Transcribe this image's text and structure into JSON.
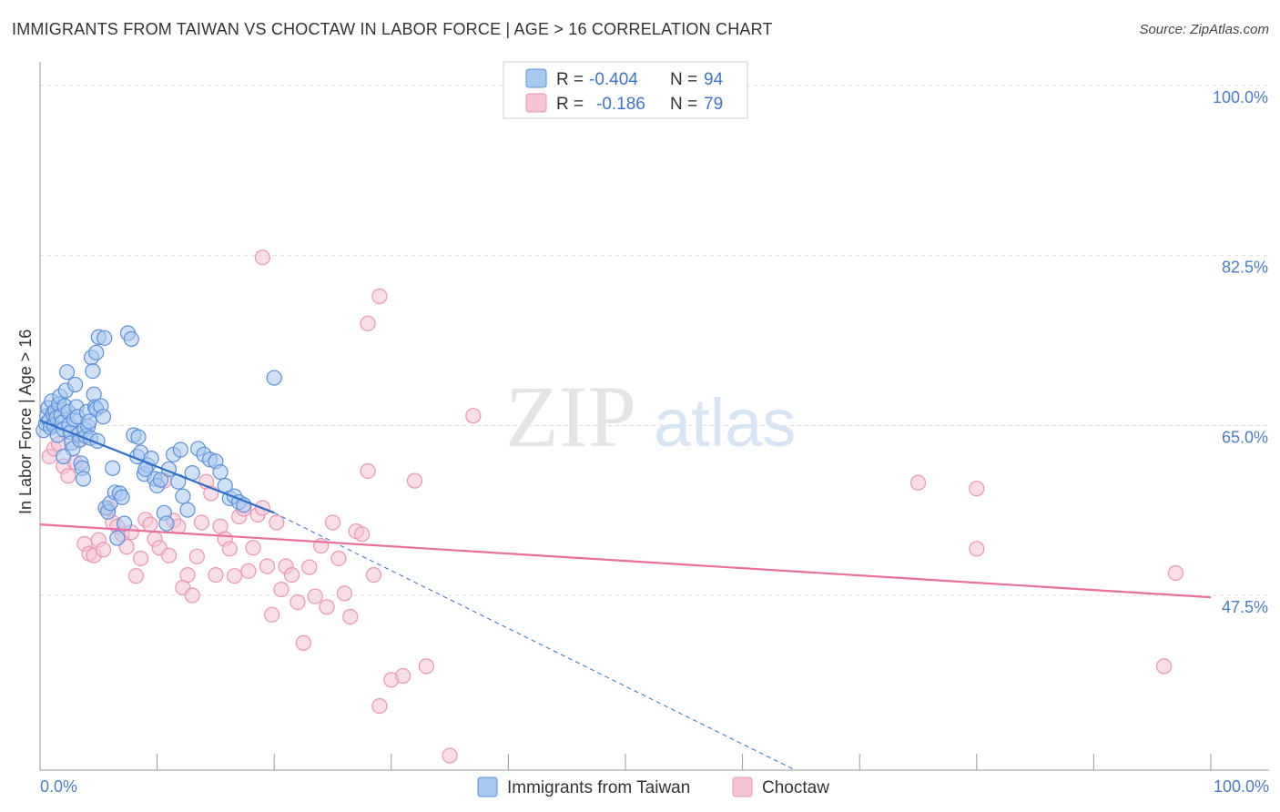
{
  "title": "IMMIGRANTS FROM TAIWAN VS CHOCTAW IN LABOR FORCE | AGE > 16 CORRELATION CHART",
  "source": "Source: ZipAtlas.com",
  "watermark": {
    "zip": "ZIP",
    "atlas": "atlas"
  },
  "colors": {
    "blue_fill": "#a9c8f0",
    "blue_stroke": "#5b8fd9",
    "blue_line": "#2f6fcc",
    "pink_fill": "#f6c3d3",
    "pink_stroke": "#ec94b1",
    "pink_line": "#e8709a",
    "axis_text": "#4a7cc9",
    "grid": "#dddddd"
  },
  "legend": {
    "rows": [
      {
        "r_label": "R =",
        "r_value": "-0.404",
        "n_label": "N =",
        "n_value": "94",
        "series": "blue"
      },
      {
        "r_label": "R =",
        "r_value": "-0.186",
        "n_label": "N =",
        "n_value": "79",
        "series": "pink"
      }
    ]
  },
  "chart_data": {
    "type": "scatter",
    "title": "IMMIGRANTS FROM TAIWAN VS CHOCTAW IN LABOR FORCE | AGE > 16 CORRELATION CHART",
    "xlabel": "",
    "ylabel": "In Labor Force | Age > 16",
    "xlim": [
      0,
      100
    ],
    "ylim": [
      29.5,
      101.5
    ],
    "y_ticks": [
      {
        "value": 100,
        "label": "100.0%"
      },
      {
        "value": 82.5,
        "label": "82.5%"
      },
      {
        "value": 65,
        "label": "65.0%"
      },
      {
        "value": 47.5,
        "label": "47.5%"
      }
    ],
    "x_tick_labels": {
      "min": "0.0%",
      "max": "100.0%"
    },
    "legend_position": "bottom",
    "series": [
      {
        "name": "Immigrants from Taiwan",
        "color": "blue",
        "R": -0.404,
        "N": 94,
        "trend": {
          "x0": 0,
          "y0": 65.5,
          "x1": 20,
          "y1": 56.0,
          "extend_to": 64.5,
          "extend_y": 29.5
        },
        "points": [
          [
            0.3,
            64.5
          ],
          [
            0.5,
            65.2
          ],
          [
            0.6,
            66.0
          ],
          [
            0.7,
            66.8
          ],
          [
            0.8,
            65.5
          ],
          [
            0.9,
            64.8
          ],
          [
            1.0,
            67.5
          ],
          [
            1.1,
            66.2
          ],
          [
            1.2,
            65.0
          ],
          [
            1.3,
            66.5
          ],
          [
            1.4,
            65.8
          ],
          [
            1.5,
            64.0
          ],
          [
            1.6,
            67.2
          ],
          [
            1.7,
            68.0
          ],
          [
            1.8,
            66.0
          ],
          [
            1.9,
            65.3
          ],
          [
            2.0,
            64.6
          ],
          [
            2.1,
            67.0
          ],
          [
            2.2,
            68.6
          ],
          [
            2.3,
            70.5
          ],
          [
            2.4,
            66.4
          ],
          [
            2.5,
            65.1
          ],
          [
            2.6,
            64.3
          ],
          [
            2.7,
            63.2
          ],
          [
            2.8,
            62.6
          ],
          [
            2.9,
            65.6
          ],
          [
            3.0,
            69.2
          ],
          [
            3.1,
            66.9
          ],
          [
            3.2,
            65.9
          ],
          [
            3.3,
            64.1
          ],
          [
            3.4,
            63.5
          ],
          [
            3.5,
            61.1
          ],
          [
            3.6,
            60.6
          ],
          [
            3.7,
            59.5
          ],
          [
            3.8,
            64.6
          ],
          [
            3.9,
            63.9
          ],
          [
            4.0,
            66.4
          ],
          [
            4.1,
            64.9
          ],
          [
            4.2,
            65.4
          ],
          [
            4.3,
            63.7
          ],
          [
            4.4,
            72.0
          ],
          [
            4.5,
            70.6
          ],
          [
            4.6,
            68.2
          ],
          [
            4.7,
            66.9
          ],
          [
            4.8,
            66.7
          ],
          [
            4.9,
            63.4
          ],
          [
            5.0,
            74.1
          ],
          [
            5.2,
            67.0
          ],
          [
            5.4,
            65.9
          ],
          [
            5.6,
            56.5
          ],
          [
            5.8,
            56.1
          ],
          [
            6.0,
            57.0
          ],
          [
            6.2,
            60.6
          ],
          [
            6.4,
            58.1
          ],
          [
            6.6,
            53.4
          ],
          [
            6.8,
            58.0
          ],
          [
            7.0,
            57.6
          ],
          [
            7.2,
            54.9
          ],
          [
            4.8,
            72.5
          ],
          [
            5.5,
            74.0
          ],
          [
            7.5,
            74.5
          ],
          [
            7.8,
            73.9
          ],
          [
            8.0,
            64.0
          ],
          [
            8.3,
            61.8
          ],
          [
            8.6,
            62.2
          ],
          [
            8.9,
            60.0
          ],
          [
            9.2,
            60.9
          ],
          [
            9.5,
            61.6
          ],
          [
            9.8,
            59.5
          ],
          [
            10.0,
            58.8
          ],
          [
            10.3,
            59.4
          ],
          [
            10.6,
            56.0
          ],
          [
            10.8,
            54.9
          ],
          [
            11.0,
            60.5
          ],
          [
            11.4,
            62.0
          ],
          [
            11.8,
            59.2
          ],
          [
            12.2,
            57.7
          ],
          [
            12.6,
            56.3
          ],
          [
            13.0,
            60.1
          ],
          [
            13.5,
            62.6
          ],
          [
            14.0,
            62.0
          ],
          [
            14.5,
            61.5
          ],
          [
            15.0,
            61.3
          ],
          [
            15.4,
            60.2
          ],
          [
            15.8,
            58.8
          ],
          [
            16.2,
            57.5
          ],
          [
            16.6,
            57.7
          ],
          [
            17.0,
            57.1
          ],
          [
            17.4,
            56.8
          ],
          [
            9.0,
            60.5
          ],
          [
            8.4,
            63.8
          ],
          [
            12.0,
            62.5
          ],
          [
            20.0,
            69.9
          ],
          [
            2.0,
            61.8
          ]
        ]
      },
      {
        "name": "Choctaw",
        "color": "pink",
        "R": -0.186,
        "N": 79,
        "trend": {
          "x0": 0,
          "y0": 54.8,
          "x1": 100,
          "y1": 47.3
        },
        "points": [
          [
            0.8,
            61.8
          ],
          [
            1.2,
            62.6
          ],
          [
            1.6,
            63.1
          ],
          [
            2.0,
            60.8
          ],
          [
            2.4,
            59.8
          ],
          [
            3.0,
            61.2
          ],
          [
            3.4,
            63.6
          ],
          [
            3.8,
            52.8
          ],
          [
            4.2,
            51.8
          ],
          [
            4.6,
            51.6
          ],
          [
            5.0,
            53.2
          ],
          [
            5.4,
            52.2
          ],
          [
            5.8,
            56.5
          ],
          [
            6.2,
            55.0
          ],
          [
            6.6,
            54.6
          ],
          [
            7.0,
            53.8
          ],
          [
            7.4,
            52.5
          ],
          [
            7.8,
            54.0
          ],
          [
            8.2,
            49.5
          ],
          [
            8.6,
            51.3
          ],
          [
            9.0,
            55.3
          ],
          [
            9.4,
            54.8
          ],
          [
            9.8,
            53.3
          ],
          [
            10.2,
            52.4
          ],
          [
            10.6,
            59.3
          ],
          [
            11.0,
            51.6
          ],
          [
            11.4,
            55.2
          ],
          [
            11.8,
            54.6
          ],
          [
            12.2,
            48.3
          ],
          [
            12.6,
            49.6
          ],
          [
            13.0,
            47.5
          ],
          [
            13.4,
            51.5
          ],
          [
            13.8,
            55.0
          ],
          [
            14.2,
            59.2
          ],
          [
            14.6,
            58.0
          ],
          [
            15.0,
            49.6
          ],
          [
            15.4,
            54.6
          ],
          [
            15.8,
            53.3
          ],
          [
            16.2,
            52.3
          ],
          [
            16.6,
            49.5
          ],
          [
            17.0,
            55.6
          ],
          [
            17.4,
            56.4
          ],
          [
            17.8,
            50.0
          ],
          [
            18.2,
            52.4
          ],
          [
            18.6,
            55.8
          ],
          [
            19.0,
            56.5
          ],
          [
            19.4,
            50.5
          ],
          [
            19.8,
            45.5
          ],
          [
            20.2,
            55.0
          ],
          [
            20.6,
            48.1
          ],
          [
            21.0,
            50.5
          ],
          [
            21.5,
            49.6
          ],
          [
            22.0,
            46.8
          ],
          [
            22.5,
            42.6
          ],
          [
            23.0,
            50.4
          ],
          [
            23.5,
            47.4
          ],
          [
            24.0,
            52.6
          ],
          [
            24.5,
            46.3
          ],
          [
            25.0,
            55.0
          ],
          [
            25.5,
            51.3
          ],
          [
            26.0,
            47.7
          ],
          [
            26.5,
            45.3
          ],
          [
            27.0,
            54.1
          ],
          [
            27.5,
            53.8
          ],
          [
            28.0,
            60.3
          ],
          [
            28.5,
            49.6
          ],
          [
            29.0,
            36.1
          ],
          [
            30.0,
            38.8
          ],
          [
            31.0,
            39.2
          ],
          [
            32.0,
            59.3
          ],
          [
            33.0,
            40.2
          ],
          [
            35.0,
            31.0
          ],
          [
            37.0,
            66.0
          ],
          [
            28.0,
            75.5
          ],
          [
            29.0,
            78.3
          ],
          [
            19.0,
            82.3
          ],
          [
            75.0,
            59.1
          ],
          [
            80.0,
            58.5
          ],
          [
            80.0,
            52.3
          ],
          [
            97.0,
            49.8
          ],
          [
            96.0,
            40.2
          ]
        ]
      }
    ]
  }
}
